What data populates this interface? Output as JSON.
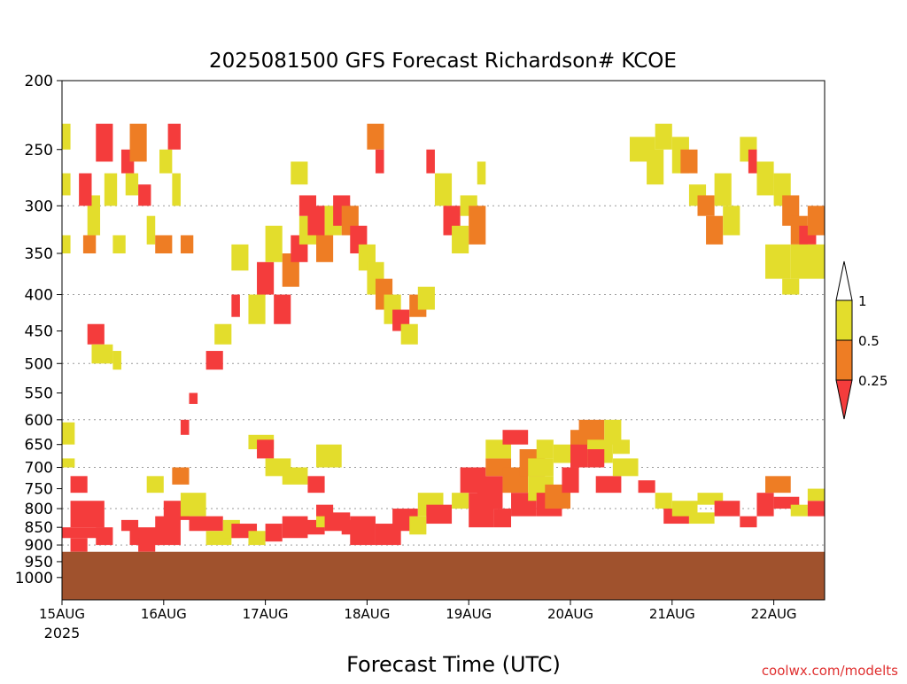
{
  "chart_data": {
    "type": "heatmap",
    "title": "2025081500 GFS Forecast Richardson# KCOE",
    "xlabel": "Forecast Time (UTC)",
    "ylabel": "",
    "watermark": "coolwx.com/modelts",
    "y_scale": "log-pressure",
    "y_range_hpa": [
      200,
      1075
    ],
    "y_ticks": [
      "200",
      "250",
      "300",
      "350",
      "400",
      "450",
      "500",
      "550",
      "600",
      "650",
      "700",
      "750",
      "800",
      "850",
      "900",
      "950",
      "1000"
    ],
    "y_tick_values": [
      200,
      250,
      300,
      350,
      400,
      450,
      500,
      550,
      600,
      650,
      700,
      750,
      800,
      850,
      900,
      950,
      1000
    ],
    "gridlines_hpa": [
      300,
      400,
      500,
      600,
      700,
      800,
      900,
      1000
    ],
    "x_range_hours": [
      0,
      180
    ],
    "x_ticks": [
      "15AUG",
      "16AUG",
      "17AUG",
      "18AUG",
      "19AUG",
      "20AUG",
      "21AUG",
      "22AUG"
    ],
    "x_tick_hours": [
      0,
      24,
      48,
      72,
      96,
      120,
      144,
      168
    ],
    "x_sublabel": "2025",
    "ground_pressure_hpa": 920,
    "colors": {
      "lt_0_25": "#f43c3c",
      "0_25_to_0_5": "#ee7d24",
      "0_5_to_1": "#e3dd2c",
      "ground": "#a0522d"
    },
    "legend": {
      "placement": "right",
      "labels": [
        "1",
        "0.5",
        "0.25"
      ]
    },
    "cells_note": "each cell: [hour_start, hour_end, p_top_hPa, p_bottom_hPa, class] class 1 = <0.25, 2 = 0.25-0.5, 3 = 0.5-1",
    "cells": [
      [
        0,
        2,
        230,
        250,
        3
      ],
      [
        0,
        2,
        270,
        290,
        3
      ],
      [
        0,
        2,
        330,
        350,
        3
      ],
      [
        0,
        3,
        605,
        650,
        3
      ],
      [
        0,
        3,
        680,
        700,
        3
      ],
      [
        2,
        6,
        720,
        760,
        1
      ],
      [
        2,
        10,
        780,
        850,
        1
      ],
      [
        0,
        10,
        850,
        880,
        1
      ],
      [
        2,
        6,
        880,
        920,
        1
      ],
      [
        5,
        8,
        330,
        350,
        2
      ],
      [
        6,
        9,
        290,
        330,
        3
      ],
      [
        4,
        7,
        270,
        300,
        1
      ],
      [
        8,
        12,
        230,
        260,
        1
      ],
      [
        10,
        13,
        270,
        300,
        3
      ],
      [
        12,
        15,
        330,
        350,
        3
      ],
      [
        14,
        17,
        250,
        270,
        1
      ],
      [
        15,
        18,
        270,
        290,
        3
      ],
      [
        16,
        20,
        230,
        260,
        2
      ],
      [
        18,
        21,
        280,
        300,
        1
      ],
      [
        20,
        22,
        310,
        340,
        3
      ],
      [
        22,
        26,
        330,
        350,
        2
      ],
      [
        23,
        26,
        250,
        270,
        3
      ],
      [
        25,
        28,
        230,
        250,
        1
      ],
      [
        26,
        28,
        270,
        300,
        3
      ],
      [
        28,
        31,
        330,
        350,
        2
      ],
      [
        6,
        10,
        440,
        470,
        1
      ],
      [
        7,
        12,
        470,
        500,
        3
      ],
      [
        12,
        14,
        480,
        510,
        3
      ],
      [
        8,
        12,
        850,
        900,
        1
      ],
      [
        14,
        18,
        830,
        860,
        1
      ],
      [
        16,
        24,
        850,
        900,
        1
      ],
      [
        18,
        22,
        880,
        920,
        1
      ],
      [
        22,
        28,
        820,
        900,
        1
      ],
      [
        24,
        30,
        780,
        830,
        1
      ],
      [
        20,
        24,
        720,
        760,
        3
      ],
      [
        26,
        30,
        700,
        740,
        2
      ],
      [
        28,
        34,
        760,
        820,
        3
      ],
      [
        30,
        38,
        820,
        860,
        1
      ],
      [
        34,
        40,
        860,
        900,
        3
      ],
      [
        38,
        42,
        830,
        880,
        3
      ],
      [
        40,
        46,
        840,
        880,
        1
      ],
      [
        44,
        48,
        860,
        900,
        3
      ],
      [
        48,
        52,
        840,
        890,
        1
      ],
      [
        52,
        58,
        820,
        880,
        1
      ],
      [
        56,
        62,
        830,
        870,
        1
      ],
      [
        60,
        64,
        800,
        850,
        3
      ],
      [
        62,
        68,
        810,
        860,
        1
      ],
      [
        66,
        70,
        830,
        870,
        1
      ],
      [
        68,
        74,
        820,
        900,
        1
      ],
      [
        74,
        80,
        840,
        900,
        1
      ],
      [
        78,
        84,
        800,
        860,
        1
      ],
      [
        82,
        86,
        820,
        870,
        3
      ],
      [
        84,
        90,
        760,
        820,
        3
      ],
      [
        86,
        92,
        790,
        840,
        1
      ],
      [
        92,
        96,
        760,
        800,
        3
      ],
      [
        94,
        100,
        700,
        760,
        1
      ],
      [
        96,
        102,
        760,
        850,
        1
      ],
      [
        98,
        104,
        720,
        800,
        1
      ],
      [
        100,
        106,
        680,
        720,
        2
      ],
      [
        102,
        106,
        800,
        850,
        1
      ],
      [
        104,
        110,
        700,
        760,
        2
      ],
      [
        106,
        112,
        760,
        820,
        1
      ],
      [
        108,
        114,
        660,
        720,
        2
      ],
      [
        110,
        116,
        720,
        780,
        3
      ],
      [
        112,
        118,
        760,
        820,
        1
      ],
      [
        114,
        120,
        740,
        800,
        2
      ],
      [
        118,
        122,
        700,
        760,
        1
      ],
      [
        120,
        124,
        640,
        700,
        1
      ],
      [
        120,
        126,
        620,
        650,
        2
      ],
      [
        122,
        128,
        600,
        650,
        2
      ],
      [
        124,
        130,
        640,
        690,
        3
      ],
      [
        126,
        132,
        720,
        760,
        1
      ],
      [
        128,
        132,
        600,
        650,
        3
      ],
      [
        130,
        136,
        680,
        720,
        3
      ],
      [
        136,
        140,
        730,
        760,
        1
      ],
      [
        140,
        144,
        760,
        800,
        3
      ],
      [
        142,
        148,
        800,
        840,
        1
      ],
      [
        144,
        150,
        780,
        820,
        3
      ],
      [
        148,
        154,
        810,
        840,
        3
      ],
      [
        150,
        156,
        760,
        790,
        3
      ],
      [
        154,
        160,
        780,
        820,
        1
      ],
      [
        160,
        164,
        820,
        850,
        1
      ],
      [
        164,
        168,
        760,
        820,
        1
      ],
      [
        166,
        172,
        720,
        760,
        2
      ],
      [
        168,
        174,
        770,
        800,
        1
      ],
      [
        172,
        176,
        790,
        820,
        3
      ],
      [
        176,
        180,
        780,
        820,
        1
      ],
      [
        176,
        180,
        750,
        780,
        3
      ],
      [
        44,
        50,
        630,
        660,
        3
      ],
      [
        46,
        50,
        640,
        680,
        1
      ],
      [
        48,
        54,
        680,
        720,
        3
      ],
      [
        52,
        58,
        700,
        740,
        3
      ],
      [
        60,
        66,
        650,
        700,
        3
      ],
      [
        58,
        62,
        720,
        760,
        1
      ],
      [
        60,
        64,
        790,
        820,
        1
      ],
      [
        44,
        48,
        400,
        440,
        3
      ],
      [
        46,
        50,
        360,
        400,
        1
      ],
      [
        48,
        52,
        320,
        360,
        3
      ],
      [
        50,
        54,
        400,
        440,
        1
      ],
      [
        52,
        56,
        350,
        390,
        2
      ],
      [
        54,
        58,
        330,
        360,
        1
      ],
      [
        56,
        60,
        310,
        340,
        3
      ],
      [
        58,
        62,
        300,
        330,
        1
      ],
      [
        60,
        64,
        330,
        360,
        2
      ],
      [
        62,
        66,
        300,
        330,
        3
      ],
      [
        64,
        68,
        290,
        320,
        1
      ],
      [
        66,
        70,
        300,
        330,
        2
      ],
      [
        68,
        72,
        320,
        350,
        1
      ],
      [
        70,
        74,
        340,
        370,
        3
      ],
      [
        72,
        76,
        360,
        400,
        3
      ],
      [
        74,
        78,
        380,
        420,
        2
      ],
      [
        76,
        80,
        400,
        440,
        3
      ],
      [
        78,
        82,
        420,
        450,
        1
      ],
      [
        80,
        84,
        440,
        470,
        3
      ],
      [
        82,
        86,
        400,
        430,
        2
      ],
      [
        84,
        88,
        390,
        420,
        3
      ],
      [
        72,
        76,
        230,
        250,
        2
      ],
      [
        74,
        76,
        250,
        270,
        1
      ],
      [
        86,
        88,
        250,
        270,
        1
      ],
      [
        88,
        92,
        270,
        300,
        3
      ],
      [
        90,
        94,
        300,
        330,
        1
      ],
      [
        92,
        96,
        320,
        350,
        3
      ],
      [
        94,
        98,
        290,
        310,
        3
      ],
      [
        96,
        100,
        300,
        340,
        2
      ],
      [
        98,
        100,
        260,
        280,
        3
      ],
      [
        56,
        60,
        290,
        310,
        1
      ],
      [
        54,
        58,
        260,
        280,
        3
      ],
      [
        40,
        44,
        340,
        370,
        3
      ],
      [
        40,
        42,
        400,
        430,
        1
      ],
      [
        36,
        40,
        440,
        470,
        3
      ],
      [
        34,
        38,
        480,
        510,
        1
      ],
      [
        30,
        32,
        550,
        570,
        1
      ],
      [
        28,
        30,
        600,
        630,
        1
      ],
      [
        100,
        106,
        640,
        680,
        3
      ],
      [
        104,
        110,
        620,
        650,
        1
      ],
      [
        110,
        116,
        680,
        720,
        3
      ],
      [
        112,
        116,
        640,
        680,
        3
      ],
      [
        116,
        120,
        650,
        690,
        3
      ],
      [
        124,
        128,
        660,
        700,
        1
      ],
      [
        130,
        134,
        640,
        670,
        3
      ],
      [
        134,
        140,
        240,
        260,
        3
      ],
      [
        138,
        142,
        250,
        280,
        3
      ],
      [
        140,
        144,
        230,
        250,
        3
      ],
      [
        144,
        148,
        240,
        270,
        3
      ],
      [
        146,
        150,
        250,
        270,
        2
      ],
      [
        148,
        152,
        280,
        300,
        3
      ],
      [
        150,
        154,
        290,
        310,
        2
      ],
      [
        152,
        156,
        310,
        340,
        2
      ],
      [
        154,
        158,
        270,
        300,
        3
      ],
      [
        156,
        160,
        300,
        330,
        3
      ],
      [
        160,
        164,
        240,
        260,
        3
      ],
      [
        162,
        164,
        250,
        270,
        1
      ],
      [
        164,
        168,
        260,
        290,
        3
      ],
      [
        168,
        172,
        270,
        300,
        3
      ],
      [
        170,
        174,
        290,
        320,
        2
      ],
      [
        172,
        176,
        310,
        340,
        2
      ],
      [
        174,
        178,
        320,
        340,
        1
      ],
      [
        176,
        180,
        300,
        330,
        2
      ],
      [
        172,
        180,
        340,
        380,
        3
      ],
      [
        166,
        172,
        340,
        380,
        3
      ],
      [
        170,
        174,
        380,
        400,
        3
      ]
    ]
  }
}
